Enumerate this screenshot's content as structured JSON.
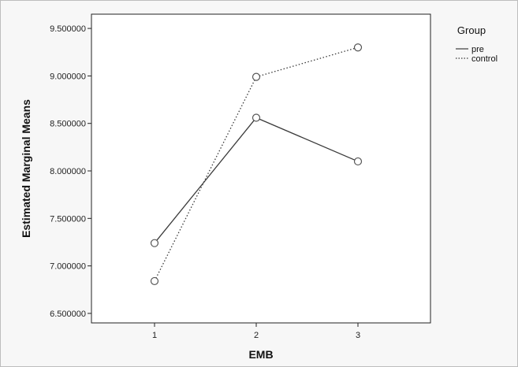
{
  "chart_data": {
    "type": "line",
    "xlabel": "EMB",
    "ylabel": "Estimated Marginal Means",
    "categories": [
      "1",
      "2",
      "3"
    ],
    "yticks": [
      "6.500000",
      "7.000000",
      "7.500000",
      "8.000000",
      "8.500000",
      "9.000000",
      "9.500000"
    ],
    "ylim": [
      6.4,
      9.65
    ],
    "legend_title": "Group",
    "legend_position": "top-right",
    "series": [
      {
        "name": "pre",
        "values": [
          7.24,
          8.56,
          8.1
        ],
        "style": "solid",
        "color": "#3a3a3a"
      },
      {
        "name": "control",
        "values": [
          6.84,
          8.99,
          9.3
        ],
        "style": "dotted",
        "color": "#3a3a3a"
      }
    ]
  }
}
